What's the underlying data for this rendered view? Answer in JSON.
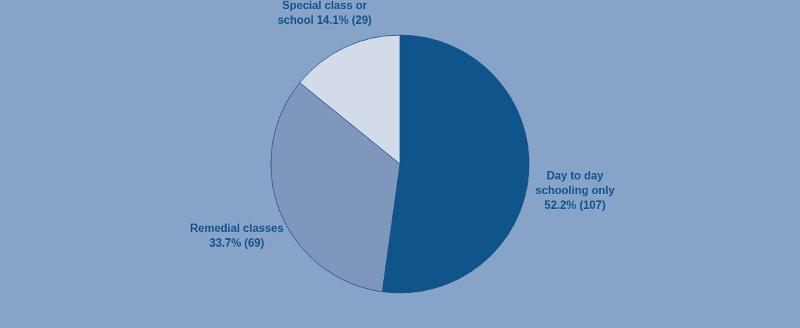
{
  "chart_data": {
    "type": "pie",
    "categories": [
      "Day to day schooling only",
      "Remedial classes",
      "Special class or school"
    ],
    "values": [
      107,
      69,
      29
    ],
    "value_labels": [
      "52.2% (107)",
      "33.7% (69)",
      "14.1% (29)"
    ],
    "colors": [
      "#10548c",
      "#7f96bd",
      "#d3dbe8"
    ]
  }
}
